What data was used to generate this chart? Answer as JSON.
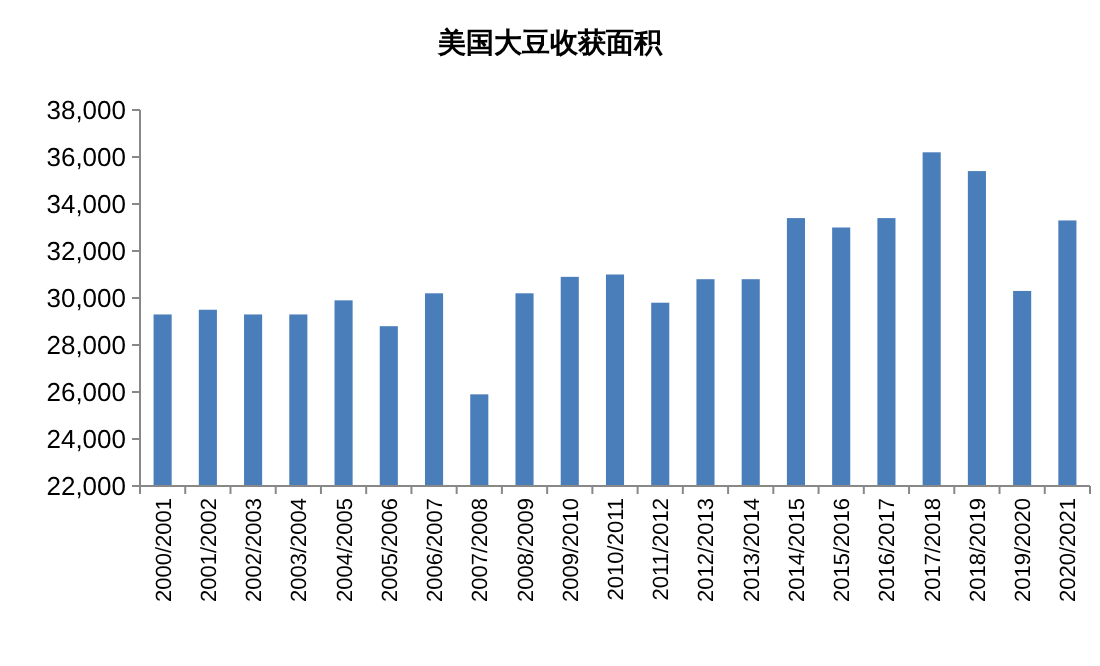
{
  "chart_data": {
    "type": "bar",
    "title": "美国大豆收获面积",
    "categories": [
      "2000/2001",
      "2001/2002",
      "2002/2003",
      "2003/2004",
      "2004/2005",
      "2005/2006",
      "2006/2007",
      "2007/2008",
      "2008/2009",
      "2009/2010",
      "2010/2011",
      "2011/2012",
      "2012/2013",
      "2013/2014",
      "2014/2015",
      "2015/2016",
      "2016/2017",
      "2017/2018",
      "2018/2019",
      "2019/2020",
      "2020/2021"
    ],
    "values": [
      29300,
      29500,
      29300,
      29300,
      29900,
      28800,
      30200,
      25900,
      30200,
      30900,
      31000,
      29800,
      30800,
      30800,
      33400,
      33000,
      33400,
      36200,
      35400,
      30300,
      33300
    ],
    "color": "#4a7ebb",
    "ylim": [
      22000,
      38000
    ],
    "yticks": [
      {
        "value": 22000,
        "label": "22,000"
      },
      {
        "value": 24000,
        "label": "24,000"
      },
      {
        "value": 26000,
        "label": "26,000"
      },
      {
        "value": 28000,
        "label": "28,000"
      },
      {
        "value": 30000,
        "label": "30,000"
      },
      {
        "value": 32000,
        "label": "32,000"
      },
      {
        "value": 34000,
        "label": "34,000"
      },
      {
        "value": 36000,
        "label": "36,000"
      },
      {
        "value": 38000,
        "label": "38,000"
      }
    ],
    "grid": false
  }
}
